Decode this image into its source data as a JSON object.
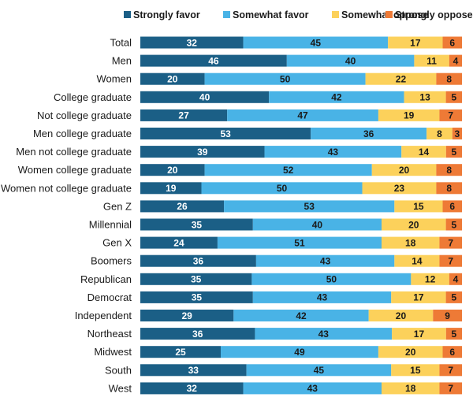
{
  "chart_data": {
    "type": "bar",
    "orientation": "horizontal",
    "stacked": true,
    "normalized": true,
    "legend_position": "top",
    "grid": false,
    "categories": [
      "Total",
      "Men",
      "Women",
      "College graduate",
      "Not college graduate",
      "Men college graduate",
      "Men not college graduate",
      "Women college graduate",
      "Women not college graduate",
      "Gen Z",
      "Millennial",
      "Gen X",
      "Boomers",
      "Republican",
      "Democrat",
      "Independent",
      "Northeast",
      "Midwest",
      "South",
      "West"
    ],
    "series": [
      {
        "name": "Strongly favor",
        "color": "#1b5f86",
        "label_color": "#ffffff",
        "values": [
          32,
          46,
          20,
          40,
          27,
          53,
          39,
          20,
          19,
          26,
          35,
          24,
          36,
          35,
          35,
          29,
          36,
          25,
          33,
          32
        ]
      },
      {
        "name": "Somewhat favor",
        "color": "#49b3e6",
        "label_color": "#1a1a1a",
        "values": [
          45,
          40,
          50,
          42,
          47,
          36,
          43,
          52,
          50,
          53,
          40,
          51,
          43,
          50,
          43,
          42,
          43,
          49,
          45,
          43
        ]
      },
      {
        "name": "Somewhat oppose",
        "color": "#fcd15b",
        "label_color": "#1a1a1a",
        "values": [
          17,
          11,
          22,
          13,
          19,
          8,
          14,
          20,
          23,
          15,
          20,
          18,
          14,
          12,
          17,
          20,
          17,
          20,
          15,
          18
        ]
      },
      {
        "name": "Strongly oppose",
        "color": "#ee7a36",
        "label_color": "#1a1a1a",
        "values": [
          6,
          4,
          8,
          5,
          7,
          3,
          5,
          8,
          8,
          6,
          5,
          7,
          7,
          4,
          5,
          9,
          5,
          6,
          7,
          7
        ]
      }
    ]
  }
}
